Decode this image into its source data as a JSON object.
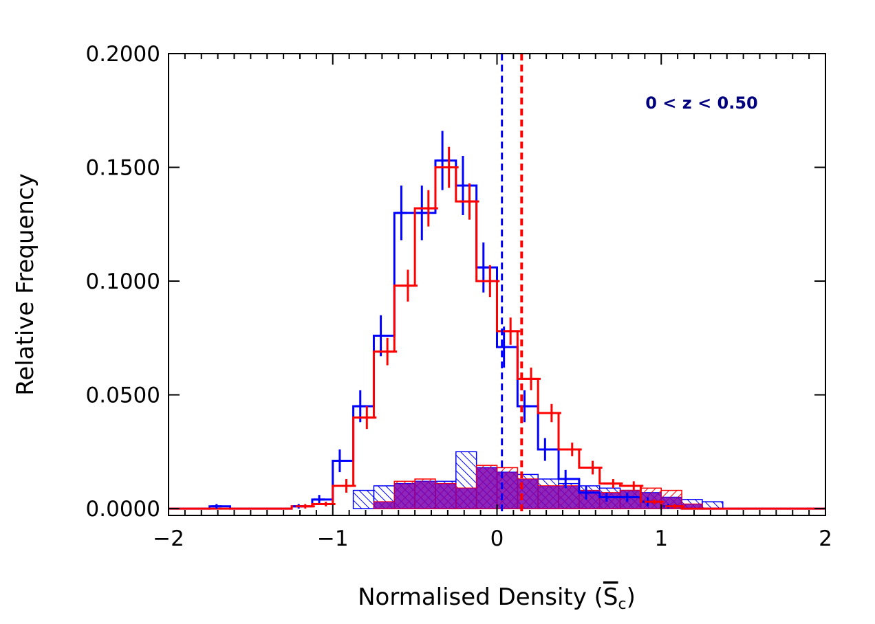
{
  "chart_data": {
    "type": "histogram",
    "xlabel": "Normalised Density (",
    "xlabel_symbol": "S",
    "xlabel_subscript": "c",
    "xlabel_close": ")",
    "ylabel": "Relative Frequency",
    "xlim": [
      -2,
      2
    ],
    "ylim": [
      -0.003,
      0.2
    ],
    "x_ticks": [
      -2,
      -1,
      0,
      1,
      2
    ],
    "x_tick_labels": [
      "−2",
      "−1",
      "0",
      "1",
      "2"
    ],
    "y_ticks": [
      0.0,
      0.05,
      0.1,
      0.15,
      0.2
    ],
    "y_tick_labels": [
      "0.0000",
      "0.0500",
      "0.1000",
      "0.1500",
      "0.2000"
    ],
    "annotation": "0 < z < 0.50",
    "colors": {
      "blue": "#0000ff",
      "red": "#ff0000",
      "purple": "#7a00b0",
      "annotation": "#00007f"
    },
    "bin_edges": [
      -2.0,
      -1.875,
      -1.75,
      -1.625,
      -1.5,
      -1.375,
      -1.25,
      -1.125,
      -1.0,
      -0.875,
      -0.75,
      -0.625,
      -0.5,
      -0.375,
      -0.25,
      -0.125,
      0.0,
      0.125,
      0.25,
      0.375,
      0.5,
      0.625,
      0.75,
      0.875,
      1.0,
      1.125,
      1.25,
      1.375,
      1.5,
      1.625,
      1.75,
      1.875,
      2.0
    ],
    "series": [
      {
        "name": "blue_all",
        "color": "#0000ff",
        "values": [
          0.0,
          0.0,
          0.001,
          0.0,
          0.0,
          0.0,
          0.001,
          0.004,
          0.021,
          0.045,
          0.076,
          0.13,
          0.13,
          0.153,
          0.142,
          0.106,
          0.071,
          0.045,
          0.026,
          0.013,
          0.007,
          0.005,
          0.005,
          0.003,
          0.001,
          0.0,
          0.0,
          0.0,
          0.0,
          0.0,
          0.0,
          0.0
        ],
        "errors": [
          0.0,
          0.0,
          0.001,
          0.0,
          0.0,
          0.0,
          0.001,
          0.002,
          0.005,
          0.007,
          0.009,
          0.012,
          0.012,
          0.013,
          0.013,
          0.011,
          0.009,
          0.007,
          0.005,
          0.004,
          0.003,
          0.002,
          0.002,
          0.002,
          0.001,
          0.0,
          0.0,
          0.0,
          0.0,
          0.0,
          0.0,
          0.0
        ]
      },
      {
        "name": "red_all",
        "color": "#ff0000",
        "values": [
          0.0,
          0.0,
          0.0,
          0.0,
          0.0,
          0.0,
          0.001,
          0.002,
          0.01,
          0.04,
          0.069,
          0.098,
          0.132,
          0.15,
          0.135,
          0.1,
          0.078,
          0.057,
          0.042,
          0.026,
          0.018,
          0.011,
          0.01,
          0.003,
          0.001,
          0.0,
          0.0,
          0.0,
          0.0,
          0.0,
          0.0,
          0.0
        ],
        "errors": [
          0.0,
          0.0,
          0.0,
          0.0,
          0.0,
          0.0,
          0.001,
          0.001,
          0.003,
          0.005,
          0.006,
          0.007,
          0.008,
          0.009,
          0.008,
          0.007,
          0.006,
          0.005,
          0.004,
          0.003,
          0.003,
          0.002,
          0.002,
          0.001,
          0.001,
          0.0,
          0.0,
          0.0,
          0.0,
          0.0,
          0.0,
          0.0
        ]
      },
      {
        "name": "blue_subset_filled",
        "color": "#0000ff",
        "values": [
          0.0,
          0.0,
          0.0,
          0.0,
          0.0,
          0.0,
          0.0,
          0.0,
          0.0,
          0.008,
          0.01,
          0.011,
          0.012,
          0.012,
          0.025,
          0.018,
          0.016,
          0.015,
          0.013,
          0.011,
          0.01,
          0.009,
          0.008,
          0.007,
          0.005,
          0.004,
          0.003,
          0.0,
          0.0,
          0.0,
          0.0,
          0.0
        ]
      },
      {
        "name": "red_subset_filled",
        "color": "#ff0000",
        "values": [
          0.0,
          0.0,
          0.0,
          0.0,
          0.0,
          0.0,
          0.0,
          0.0,
          0.0,
          0.0,
          0.003,
          0.012,
          0.013,
          0.011,
          0.009,
          0.019,
          0.018,
          0.013,
          0.01,
          0.01,
          0.008,
          0.007,
          0.008,
          0.009,
          0.008,
          0.002,
          0.0,
          0.0,
          0.0,
          0.0,
          0.0,
          0.0
        ]
      }
    ],
    "median_lines": [
      {
        "name": "blue_median",
        "x": 0.03,
        "color": "#0000ff"
      },
      {
        "name": "red_median",
        "x": 0.15,
        "color": "#ff0000"
      }
    ]
  }
}
